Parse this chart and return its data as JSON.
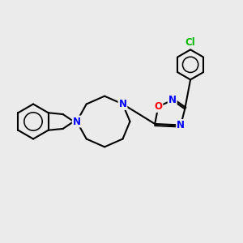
{
  "bg_color": "#ebebeb",
  "bond_color": "#000000",
  "bond_width": 1.5,
  "atom_colors": {
    "N": "#0000ff",
    "O": "#ff0000",
    "Cl": "#00bb00",
    "C": "#000000"
  },
  "figsize": [
    3.0,
    3.0
  ],
  "dpi": 100
}
